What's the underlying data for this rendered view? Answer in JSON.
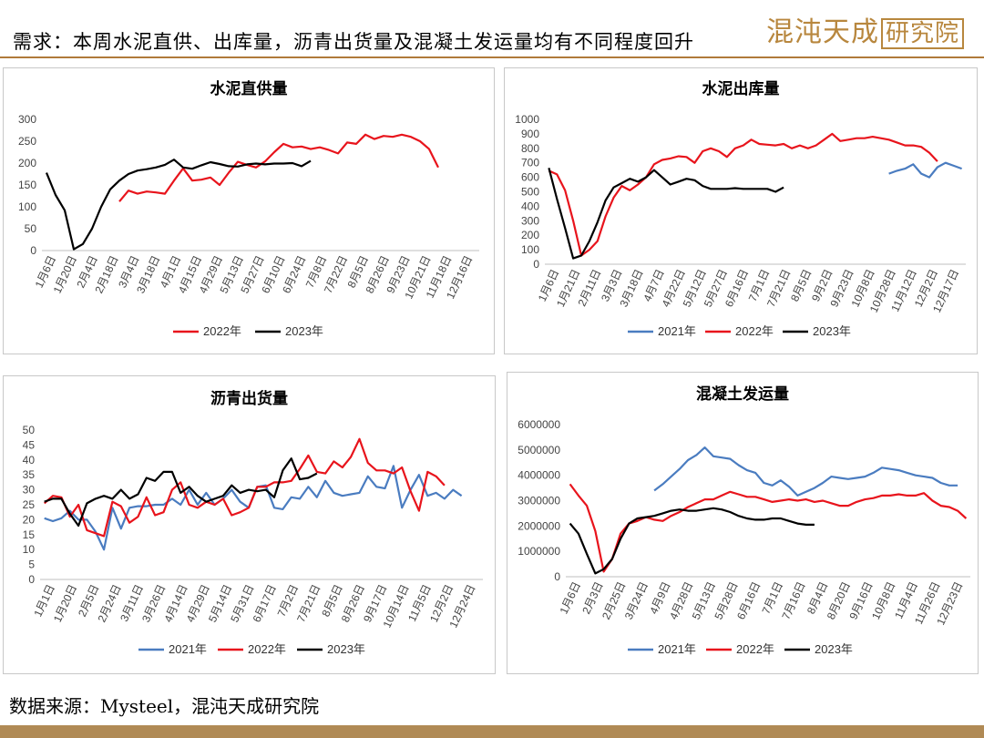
{
  "header": {
    "title": "需求：本周水泥直供、出库量，沥青出货量及混凝土发运量均有不同程度回升"
  },
  "logo": {
    "text_main": "混沌天成",
    "text_box": "研究院"
  },
  "footer": {
    "source": "数据来源：Mysteel，混沌天成研究院"
  },
  "colors": {
    "s2021": "#4a7cc0",
    "s2022": "#e8141c",
    "s2023": "#000000",
    "accent": "#b08a55"
  },
  "chart_data": [
    {
      "type": "line",
      "title": "水泥直供量",
      "ylim": [
        0,
        300
      ],
      "yticks": [
        0,
        50,
        100,
        150,
        200,
        250,
        300
      ],
      "x_labels": [
        "1月6日",
        "1月20日",
        "2月4日",
        "2月18日",
        "3月4日",
        "3月18日",
        "4月1日",
        "4月15日",
        "4月29日",
        "5月13日",
        "5月27日",
        "6月10日",
        "6月24日",
        "7月8日",
        "7月22日",
        "8月5日",
        "8月26日",
        "9月23日",
        "10月21日",
        "11月18日",
        "12月16日"
      ],
      "n_points": 48,
      "series": [
        {
          "name": "2022年",
          "color": "#e8141c",
          "start": 8,
          "values": [
            112,
            137,
            130,
            135,
            133,
            130,
            160,
            188,
            160,
            162,
            167,
            150,
            178,
            203,
            196,
            190,
            204,
            225,
            244,
            236,
            238,
            232,
            236,
            230,
            222,
            247,
            244,
            265,
            255,
            262,
            260,
            265,
            260,
            250,
            232,
            190
          ]
        },
        {
          "name": "2023年",
          "color": "#000000",
          "start": 0,
          "values": [
            178,
            127,
            92,
            3,
            15,
            50,
            100,
            140,
            160,
            175,
            183,
            186,
            190,
            196,
            208,
            190,
            187,
            195,
            202,
            198,
            193,
            192,
            197,
            199,
            197,
            199,
            199,
            200,
            193,
            205
          ]
        }
      ],
      "legend": [
        "2022年",
        "2023年"
      ],
      "legend_position": "bottom"
    },
    {
      "type": "line",
      "title": "水泥出库量",
      "ylim": [
        0,
        1000
      ],
      "yticks": [
        0,
        100,
        200,
        300,
        400,
        500,
        600,
        700,
        800,
        900,
        1000
      ],
      "x_labels": [
        "1月6日",
        "1月21日",
        "2月11日",
        "3月3日",
        "3月18日",
        "4月7日",
        "4月22日",
        "5月12日",
        "5月27日",
        "6月16日",
        "7月1日",
        "7月21日",
        "8月5日",
        "9月2日",
        "9月23日",
        "10月8日",
        "10月28日",
        "11月12日",
        "12月2日",
        "12月17日"
      ],
      "n_points": 52,
      "series": [
        {
          "name": "2021年",
          "color": "#4a7cc0",
          "start": 42,
          "values": [
            625,
            645,
            660,
            690,
            625,
            600,
            670,
            700,
            680,
            660
          ]
        },
        {
          "name": "2022年",
          "color": "#e8141c",
          "start": 0,
          "values": [
            645,
            620,
            510,
            300,
            60,
            100,
            160,
            330,
            460,
            540,
            510,
            550,
            600,
            690,
            720,
            730,
            745,
            740,
            700,
            780,
            800,
            780,
            740,
            800,
            820,
            860,
            830,
            825,
            820,
            830,
            800,
            820,
            800,
            820,
            860,
            900,
            850,
            860,
            870,
            870,
            880,
            870,
            860,
            840,
            820,
            820,
            810,
            770,
            710
          ]
        },
        {
          "name": "2023年",
          "color": "#000000",
          "start": 0,
          "values": [
            665,
            450,
            250,
            40,
            60,
            160,
            290,
            440,
            530,
            560,
            590,
            570,
            600,
            650,
            600,
            550,
            570,
            590,
            580,
            540,
            520,
            520,
            520,
            525,
            520,
            520,
            520,
            520,
            500,
            530
          ]
        }
      ],
      "legend": [
        "2021年",
        "2022年",
        "2023年"
      ],
      "legend_position": "bottom"
    },
    {
      "type": "line",
      "title": "沥青出货量",
      "ylim": [
        0,
        50
      ],
      "yticks": [
        0,
        5,
        10,
        15,
        20,
        25,
        30,
        35,
        40,
        45,
        50
      ],
      "x_labels": [
        "1月1日",
        "1月20日",
        "2月5日",
        "2月24日",
        "3月11日",
        "3月26日",
        "4月14日",
        "4月29日",
        "5月14日",
        "5月31日",
        "6月17日",
        "7月2日",
        "7月21日",
        "8月5日",
        "8月26日",
        "9月17日",
        "10月14日",
        "11月5日",
        "12月2日",
        "12月24日"
      ],
      "n_points": 52,
      "series": [
        {
          "name": "2021年",
          "color": "#4a7cc0",
          "start": 0,
          "values": [
            20.5,
            19.5,
            20.5,
            23,
            20,
            20,
            16,
            10,
            24,
            17,
            24,
            24.5,
            24.5,
            25,
            25,
            27,
            25,
            30,
            25,
            29,
            25,
            27,
            30,
            26,
            24,
            31,
            31.5,
            24,
            23.5,
            27.5,
            27,
            31,
            27.5,
            33,
            29,
            28,
            28.5,
            29,
            34.5,
            31,
            30.5,
            38,
            24,
            30,
            35,
            28,
            29,
            27,
            30,
            28
          ]
        },
        {
          "name": "2022年",
          "color": "#e8141c",
          "start": 0,
          "values": [
            25.5,
            28,
            27.5,
            21,
            25,
            16.5,
            15.5,
            14.5,
            26,
            24.5,
            19,
            21,
            27.5,
            21.5,
            22.5,
            30,
            32.5,
            25,
            24,
            26,
            25,
            27,
            21.5,
            22.5,
            24,
            31,
            31,
            32.5,
            32.5,
            33,
            37,
            41.5,
            36,
            35.5,
            39.5,
            37.5,
            41,
            47,
            39,
            36.5,
            36.5,
            35.5,
            37.5,
            29.5,
            23,
            36,
            34.5,
            31.5
          ]
        },
        {
          "name": "2023年",
          "color": "#000000",
          "start": 0,
          "values": [
            26,
            27,
            27,
            22,
            18,
            25.5,
            27,
            28,
            27,
            30,
            27,
            28.5,
            34,
            33,
            36,
            36,
            29,
            31,
            28,
            26,
            27,
            28,
            31.5,
            29,
            30,
            29.5,
            30,
            27.5,
            36.5,
            40.5,
            33.5,
            34,
            35.5
          ]
        }
      ],
      "legend": [
        "2021年",
        "2022年",
        "2023年"
      ],
      "legend_position": "bottom"
    },
    {
      "type": "line",
      "title": "混凝土发运量",
      "ylim": [
        0,
        6000000
      ],
      "yticks": [
        0,
        1000000,
        2000000,
        3000000,
        4000000,
        5000000,
        6000000
      ],
      "x_labels": [
        "1月6日",
        "2月3日",
        "2月25日",
        "3月24日",
        "4月9日",
        "4月28日",
        "5月13日",
        "5月28日",
        "6月16日",
        "7月1日",
        "7月16日",
        "8月4日",
        "8月20日",
        "9月16日",
        "10月8日",
        "11月4日",
        "11月26日",
        "12月23日"
      ],
      "n_points": 48,
      "series": [
        {
          "name": "2021年",
          "color": "#4a7cc0",
          "start": 10,
          "values": [
            3400000,
            3650000,
            3950000,
            4250000,
            4600000,
            4800000,
            5100000,
            4750000,
            4700000,
            4650000,
            4400000,
            4200000,
            4100000,
            3700000,
            3600000,
            3800000,
            3550000,
            3200000,
            3350000,
            3500000,
            3700000,
            3950000,
            3900000,
            3850000,
            3900000,
            3950000,
            4100000,
            4300000,
            4250000,
            4200000,
            4100000,
            4000000,
            3950000,
            3900000,
            3700000,
            3600000,
            3600000
          ]
        },
        {
          "name": "2022年",
          "color": "#e8141c",
          "start": 0,
          "values": [
            3650000,
            3200000,
            2800000,
            1800000,
            200000,
            700000,
            1700000,
            2100000,
            2200000,
            2350000,
            2250000,
            2200000,
            2400000,
            2550000,
            2750000,
            2900000,
            3050000,
            3050000,
            3200000,
            3350000,
            3250000,
            3150000,
            3150000,
            3050000,
            2950000,
            3000000,
            3050000,
            3000000,
            3050000,
            2950000,
            3000000,
            2900000,
            2800000,
            2800000,
            2950000,
            3050000,
            3100000,
            3200000,
            3200000,
            3250000,
            3200000,
            3200000,
            3300000,
            3000000,
            2800000,
            2750000,
            2600000,
            2300000
          ]
        },
        {
          "name": "2023年",
          "color": "#000000",
          "start": 0,
          "values": [
            2100000,
            1700000,
            900000,
            130000,
            300000,
            700000,
            1500000,
            2100000,
            2300000,
            2350000,
            2400000,
            2500000,
            2600000,
            2650000,
            2600000,
            2600000,
            2650000,
            2700000,
            2650000,
            2550000,
            2400000,
            2300000,
            2250000,
            2250000,
            2300000,
            2300000,
            2200000,
            2100000,
            2050000,
            2050000
          ]
        }
      ],
      "legend": [
        "2021年",
        "2022年",
        "2023年"
      ],
      "legend_position": "bottom"
    }
  ]
}
